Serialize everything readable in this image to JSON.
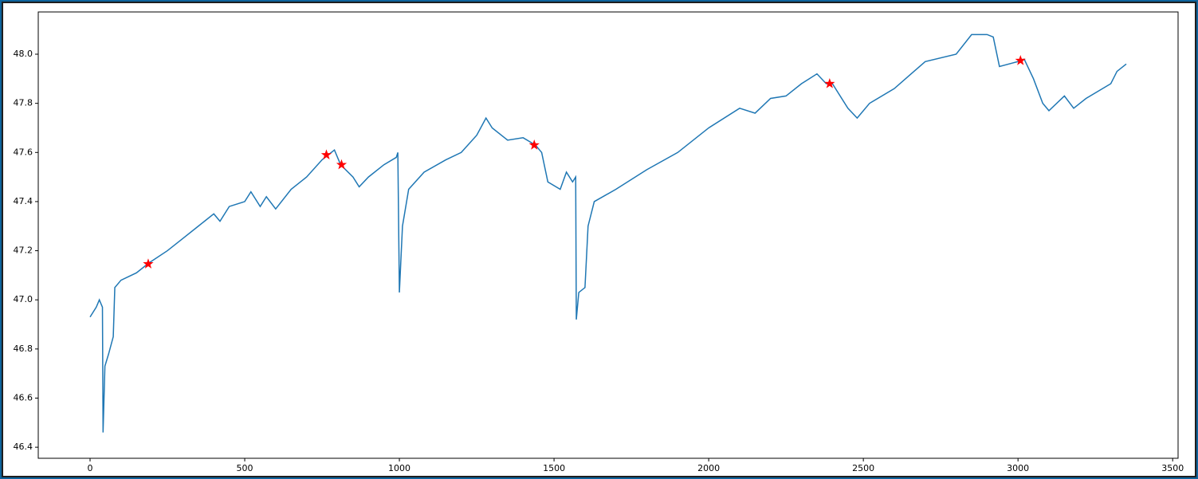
{
  "chart_data": {
    "type": "line",
    "x": [
      0,
      20,
      30,
      40,
      42,
      48,
      60,
      75,
      80,
      100,
      150,
      190,
      250,
      300,
      350,
      400,
      420,
      450,
      500,
      520,
      550,
      570,
      600,
      650,
      700,
      750,
      770,
      790,
      810,
      850,
      870,
      900,
      950,
      990,
      995,
      1000,
      1010,
      1030,
      1080,
      1150,
      1200,
      1250,
      1280,
      1300,
      1350,
      1400,
      1440,
      1460,
      1480,
      1520,
      1540,
      1560,
      1570,
      1572,
      1580,
      1600,
      1610,
      1630,
      1700,
      1800,
      1900,
      2000,
      2100,
      2150,
      2200,
      2250,
      2300,
      2350,
      2380,
      2400,
      2450,
      2480,
      2520,
      2600,
      2700,
      2800,
      2850,
      2900,
      2920,
      2940,
      3000,
      3020,
      3050,
      3080,
      3100,
      3150,
      3180,
      3220,
      3300,
      3320,
      3350
    ],
    "values": [
      46.93,
      46.97,
      47.0,
      46.97,
      46.46,
      46.73,
      46.78,
      46.85,
      47.05,
      47.08,
      47.11,
      47.15,
      47.2,
      47.25,
      47.3,
      47.35,
      47.32,
      47.38,
      47.4,
      47.44,
      47.38,
      47.42,
      47.37,
      47.45,
      47.5,
      47.57,
      47.59,
      47.61,
      47.55,
      47.5,
      47.46,
      47.5,
      47.55,
      47.58,
      47.6,
      47.03,
      47.3,
      47.45,
      47.52,
      47.57,
      47.6,
      47.67,
      47.74,
      47.7,
      47.65,
      47.66,
      47.63,
      47.6,
      47.48,
      47.45,
      47.52,
      47.48,
      47.5,
      46.92,
      47.03,
      47.05,
      47.3,
      47.4,
      47.45,
      47.53,
      47.6,
      47.7,
      47.78,
      47.76,
      47.82,
      47.83,
      47.88,
      47.92,
      47.88,
      47.88,
      47.78,
      47.74,
      47.8,
      47.86,
      47.97,
      48.0,
      48.08,
      48.08,
      48.07,
      47.95,
      47.97,
      47.98,
      47.9,
      47.8,
      47.77,
      47.83,
      47.78,
      47.82,
      47.88,
      47.93,
      47.96
    ],
    "color": "#1f77b4",
    "markers": {
      "marker": "star",
      "color": "#ff0000",
      "x": [
        188,
        764,
        813,
        1436,
        2391,
        3008
      ],
      "values": [
        47.146,
        47.59,
        47.55,
        47.63,
        47.88,
        47.974
      ]
    },
    "xlim": [
      -167.5,
      3517.5
    ],
    "xticks": [
      0,
      500,
      1000,
      1500,
      2000,
      2500,
      3000,
      3500
    ],
    "ylim": [
      46.355,
      48.172
    ],
    "yticks": [
      46.4,
      46.6,
      46.8,
      {
        "value": 47,
        "label": "47.0"
      },
      47.2,
      47.4,
      47.6,
      47.8,
      {
        "value": 48,
        "label": "48.0"
      }
    ]
  }
}
